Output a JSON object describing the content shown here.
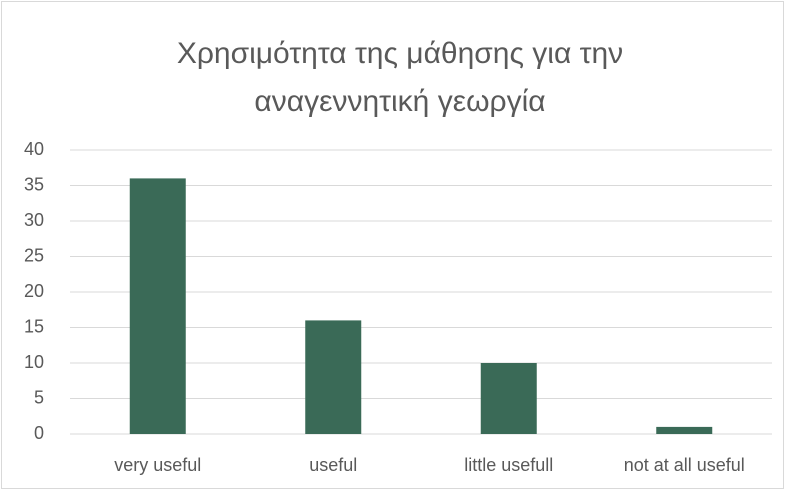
{
  "chart_data": {
    "type": "bar",
    "title": "Χρησιμότητα της μάθησης για την αναγεννητική γεωργία",
    "categories": [
      "very useful",
      "useful",
      "little usefull",
      "not at all useful"
    ],
    "values": [
      36,
      16,
      10,
      1
    ],
    "color": "#3a6a57",
    "ylim": [
      0,
      40
    ],
    "yticks": [
      0,
      5,
      10,
      15,
      20,
      25,
      30,
      35,
      40
    ],
    "grid": true
  }
}
